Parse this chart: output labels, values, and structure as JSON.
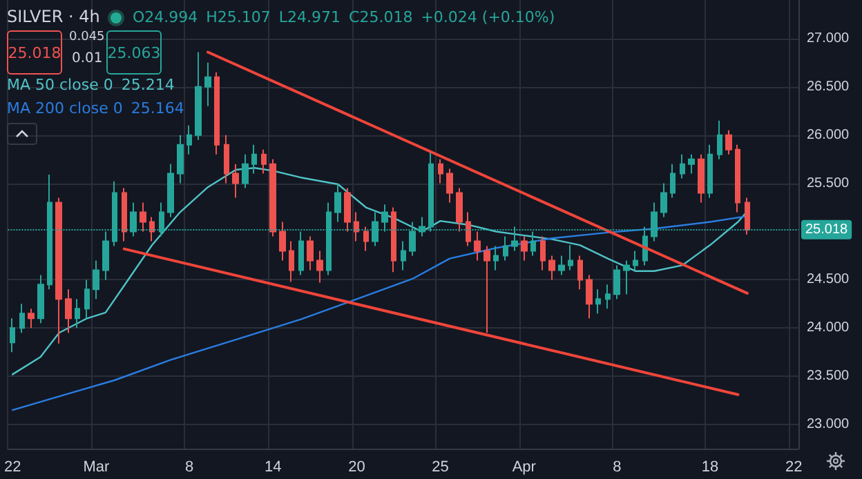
{
  "chart_data": {
    "type": "candlestick",
    "title": "SILVER · 4h",
    "categories": [
      "22",
      null,
      null,
      null,
      null,
      null,
      null,
      null,
      null,
      "Mar",
      null,
      null,
      null,
      null,
      null,
      null,
      null,
      null,
      null,
      "8",
      null,
      null,
      null,
      null,
      null,
      null,
      null,
      null,
      "14",
      null,
      null,
      null,
      null,
      null,
      null,
      null,
      null,
      "20",
      null,
      null,
      null,
      null,
      null,
      null,
      null,
      null,
      "25",
      null,
      null,
      null,
      null,
      null,
      null,
      null,
      null,
      "Apr",
      null,
      null,
      null,
      null,
      null,
      null,
      null,
      null,
      null,
      "8",
      null,
      null,
      null,
      null,
      null,
      null,
      null,
      null,
      null,
      "18",
      null,
      null,
      null,
      null,
      null,
      null,
      null,
      null,
      "22"
    ],
    "ohlc": [
      [
        23.85,
        24.1,
        23.75,
        24.0
      ],
      [
        24.0,
        24.25,
        23.95,
        24.15
      ],
      [
        24.15,
        24.2,
        24.0,
        24.1
      ],
      [
        24.1,
        24.55,
        24.05,
        24.45
      ],
      [
        24.45,
        25.59,
        24.4,
        25.3
      ],
      [
        25.3,
        25.35,
        23.84,
        24.3
      ],
      [
        24.3,
        24.4,
        23.95,
        24.1
      ],
      [
        24.1,
        24.3,
        24.0,
        24.2
      ],
      [
        24.2,
        24.5,
        24.1,
        24.4
      ],
      [
        24.4,
        24.7,
        24.3,
        24.6
      ],
      [
        24.6,
        25.0,
        24.5,
        24.9
      ],
      [
        24.9,
        25.52,
        24.85,
        25.4
      ],
      [
        25.4,
        25.45,
        24.9,
        25.0
      ],
      [
        25.0,
        25.3,
        24.95,
        25.2
      ],
      [
        25.2,
        25.3,
        25.0,
        25.1
      ],
      [
        25.1,
        25.15,
        24.9,
        25.0
      ],
      [
        25.0,
        25.3,
        24.95,
        25.2
      ],
      [
        25.2,
        25.7,
        25.15,
        25.6
      ],
      [
        25.6,
        26.0,
        25.5,
        25.9
      ],
      [
        25.9,
        26.1,
        25.8,
        26.0
      ],
      [
        26.0,
        26.86,
        25.95,
        26.5
      ],
      [
        26.5,
        26.75,
        26.3,
        26.6
      ],
      [
        26.6,
        26.65,
        25.8,
        25.9
      ],
      [
        25.9,
        26.0,
        25.5,
        25.6
      ],
      [
        25.6,
        25.7,
        25.35,
        25.5
      ],
      [
        25.5,
        25.8,
        25.45,
        25.7
      ],
      [
        25.7,
        25.9,
        25.6,
        25.8
      ],
      [
        25.8,
        25.85,
        25.6,
        25.7
      ],
      [
        25.7,
        25.75,
        24.95,
        25.0
      ],
      [
        25.0,
        25.1,
        24.7,
        24.8
      ],
      [
        24.8,
        24.9,
        24.48,
        24.6
      ],
      [
        24.6,
        25.0,
        24.55,
        24.9
      ],
      [
        24.9,
        24.95,
        24.6,
        24.7
      ],
      [
        24.7,
        24.8,
        24.47,
        24.6
      ],
      [
        24.6,
        25.3,
        24.55,
        25.2
      ],
      [
        25.2,
        25.49,
        25.1,
        25.4
      ],
      [
        25.4,
        25.45,
        25.0,
        25.1
      ],
      [
        25.1,
        25.2,
        24.9,
        25.0
      ],
      [
        25.0,
        25.05,
        24.8,
        24.9
      ],
      [
        24.9,
        25.2,
        24.85,
        25.1
      ],
      [
        25.1,
        25.28,
        25.0,
        25.2
      ],
      [
        25.2,
        25.25,
        24.58,
        24.7
      ],
      [
        24.7,
        24.9,
        24.6,
        24.8
      ],
      [
        24.8,
        25.1,
        24.75,
        25.0
      ],
      [
        25.0,
        25.15,
        24.95,
        25.05
      ],
      [
        25.05,
        25.82,
        25.0,
        25.7
      ],
      [
        25.7,
        25.75,
        25.5,
        25.6
      ],
      [
        25.6,
        25.65,
        25.3,
        25.4
      ],
      [
        25.4,
        25.45,
        25.0,
        25.1
      ],
      [
        25.1,
        25.2,
        24.85,
        24.9
      ],
      [
        24.9,
        25.0,
        24.7,
        24.8
      ],
      [
        24.8,
        24.85,
        23.95,
        24.7
      ],
      [
        24.7,
        24.85,
        24.6,
        24.75
      ],
      [
        24.75,
        24.95,
        24.7,
        24.85
      ],
      [
        24.85,
        25.05,
        24.8,
        24.9
      ],
      [
        24.9,
        24.95,
        24.7,
        24.8
      ],
      [
        24.8,
        25.0,
        24.75,
        24.9
      ],
      [
        24.9,
        24.95,
        24.6,
        24.7
      ],
      [
        24.7,
        24.75,
        24.5,
        24.6
      ],
      [
        24.6,
        24.75,
        24.55,
        24.65
      ],
      [
        24.65,
        24.86,
        24.6,
        24.7
      ],
      [
        24.7,
        24.75,
        24.4,
        24.5
      ],
      [
        24.5,
        24.55,
        24.1,
        24.25
      ],
      [
        24.25,
        24.4,
        24.15,
        24.3
      ],
      [
        24.3,
        24.45,
        24.2,
        24.35
      ],
      [
        24.35,
        24.65,
        24.3,
        24.6
      ],
      [
        24.6,
        24.7,
        24.35,
        24.65
      ],
      [
        24.65,
        24.8,
        24.6,
        24.7
      ],
      [
        24.7,
        25.05,
        24.65,
        24.95
      ],
      [
        24.95,
        25.3,
        24.9,
        25.2
      ],
      [
        25.2,
        25.5,
        25.15,
        25.4
      ],
      [
        25.4,
        25.7,
        25.35,
        25.6
      ],
      [
        25.6,
        25.8,
        25.55,
        25.7
      ],
      [
        25.7,
        25.8,
        25.6,
        25.75
      ],
      [
        25.75,
        25.8,
        25.3,
        25.4
      ],
      [
        25.4,
        25.9,
        25.35,
        25.8
      ],
      [
        25.8,
        26.15,
        25.75,
        26.0
      ],
      [
        26.0,
        26.05,
        25.8,
        25.85
      ],
      [
        25.85,
        25.9,
        25.2,
        25.3
      ],
      [
        25.3,
        25.35,
        24.97,
        25.018
      ],
      null,
      null,
      null,
      null,
      null
    ],
    "series": [
      {
        "name": "MA 50 close 0",
        "type": "line",
        "color": "#4fc3c7",
        "values": [
          23.52,
          null,
          null,
          23.7,
          null,
          23.95,
          null,
          null,
          24.1,
          null,
          24.16,
          null,
          24.44,
          null,
          null,
          24.86,
          null,
          null,
          25.2,
          null,
          null,
          25.46,
          null,
          null,
          25.64,
          null,
          25.66,
          null,
          25.63,
          null,
          null,
          25.56,
          null,
          null,
          null,
          25.49,
          null,
          null,
          25.25,
          null,
          null,
          25.14,
          null,
          null,
          25.0,
          null,
          25.11,
          null,
          null,
          25.07,
          null,
          null,
          25.0,
          null,
          null,
          24.96,
          null,
          null,
          24.92,
          null,
          null,
          24.86,
          null,
          null,
          24.72,
          null,
          null,
          24.59,
          null,
          24.59,
          null,
          null,
          24.65,
          null,
          null,
          24.86,
          null,
          null,
          25.1,
          25.21,
          null,
          null,
          null,
          null,
          null
        ]
      },
      {
        "name": "MA 200 close 0",
        "type": "line",
        "color": "#2a7de1",
        "values": [
          23.15,
          null,
          null,
          null,
          null,
          null,
          23.32,
          null,
          null,
          null,
          null,
          23.46,
          null,
          null,
          null,
          null,
          null,
          23.67,
          null,
          null,
          null,
          null,
          null,
          null,
          23.88,
          null,
          null,
          null,
          null,
          null,
          null,
          24.09,
          null,
          null,
          null,
          null,
          null,
          24.3,
          null,
          null,
          null,
          null,
          null,
          24.51,
          null,
          null,
          null,
          24.72,
          null,
          null,
          null,
          null,
          24.83,
          null,
          null,
          null,
          null,
          null,
          24.93,
          null,
          null,
          null,
          null,
          null,
          24.99,
          null,
          null,
          null,
          null,
          25.03,
          null,
          null,
          null,
          null,
          null,
          25.1,
          null,
          null,
          null,
          25.16,
          null,
          null,
          null,
          null,
          null
        ]
      },
      {
        "type": "line",
        "color": "#f0453a",
        "values": [
          null,
          null,
          null,
          null,
          null,
          null,
          null,
          null,
          null,
          null,
          null,
          null,
          null,
          null,
          null,
          null,
          null,
          null,
          null,
          null,
          null,
          26.86,
          null,
          null,
          null,
          null,
          null,
          null,
          null,
          null,
          null,
          null,
          null,
          null,
          null,
          null,
          null,
          null,
          null,
          null,
          null,
          null,
          null,
          null,
          null,
          null,
          null,
          null,
          null,
          null,
          null,
          null,
          null,
          null,
          null,
          null,
          null,
          null,
          null,
          null,
          null,
          null,
          null,
          null,
          null,
          null,
          null,
          null,
          null,
          null,
          null,
          null,
          null,
          null,
          null,
          null,
          null,
          null,
          null,
          24.36,
          null,
          null,
          null,
          null,
          null
        ]
      },
      {
        "type": "line",
        "color": "#f0453a",
        "values": [
          null,
          null,
          null,
          null,
          null,
          null,
          null,
          null,
          null,
          null,
          null,
          null,
          24.82,
          null,
          null,
          null,
          null,
          null,
          null,
          null,
          null,
          null,
          null,
          null,
          null,
          null,
          null,
          null,
          null,
          null,
          null,
          null,
          null,
          null,
          null,
          null,
          null,
          null,
          null,
          null,
          null,
          null,
          null,
          null,
          null,
          null,
          null,
          null,
          null,
          null,
          null,
          null,
          null,
          null,
          null,
          null,
          null,
          null,
          null,
          null,
          null,
          null,
          null,
          null,
          null,
          null,
          null,
          null,
          null,
          null,
          null,
          null,
          null,
          null,
          null,
          null,
          null,
          null,
          23.31,
          null,
          null,
          null,
          null,
          null,
          null
        ]
      }
    ],
    "ylim": [
      22.75,
      27.4
    ],
    "yticks": [
      {
        "value": 23,
        "label": "23.000"
      },
      {
        "value": 23.5,
        "label": "23.500"
      },
      {
        "value": 24,
        "label": "24.000"
      },
      {
        "value": 24.5,
        "label": "24.500"
      },
      {
        "value": 25.5,
        "label": "25.500"
      },
      {
        "value": 26,
        "label": "26.000"
      },
      {
        "value": 26.5,
        "label": "26.500"
      },
      {
        "value": 27,
        "label": "27.000"
      }
    ],
    "ref_lines": [
      {
        "axis": "y",
        "value": 25.018,
        "label": "25.018",
        "color": "#26a69a",
        "line_style": "dotted"
      }
    ],
    "annotations": [
      "O24.994",
      "H25.107",
      "L24.971",
      "C25.018",
      "+0.024 (+0.10%)",
      "25.018",
      "0.045",
      "0.01",
      "25.063",
      "25.214",
      "25.164"
    ],
    "grid": true,
    "legend": "top left",
    "marker": "none"
  }
}
